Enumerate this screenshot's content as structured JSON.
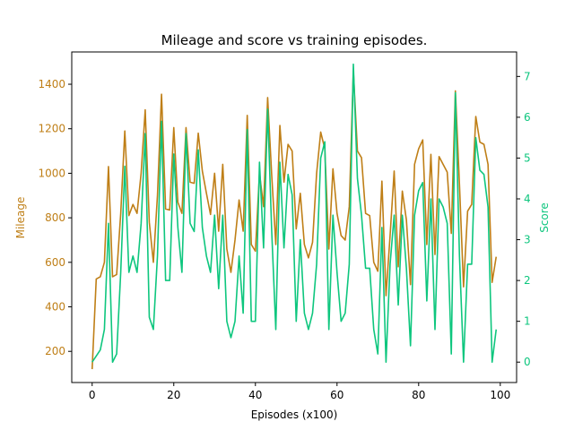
{
  "chart_data": {
    "type": "line",
    "title": "Mileage and score vs training episodes.",
    "xlabel": "Episodes (x100)",
    "ylabel_left": "Mileage",
    "ylabel_right": "Score",
    "xlim": [
      -5,
      104
    ],
    "ylim_left": [
      60,
      1545
    ],
    "ylim_right": [
      -0.5,
      7.6
    ],
    "x_ticks": [
      0,
      20,
      40,
      60,
      80,
      100
    ],
    "y_left_ticks": [
      200,
      400,
      600,
      800,
      1000,
      1200,
      1400
    ],
    "y_right_ticks": [
      0,
      1,
      2,
      3,
      4,
      5,
      6,
      7
    ],
    "colors": {
      "mileage": "#bf7f17",
      "score": "#0ec67e"
    },
    "series": [
      {
        "axis": "left",
        "values": [
          120,
          525,
          535,
          600,
          1030,
          535,
          545,
          820,
          1190,
          810,
          860,
          820,
          1000,
          1285,
          780,
          600,
          900,
          1355,
          840,
          835,
          1205,
          870,
          820,
          1205,
          960,
          955,
          1180,
          1010,
          910,
          815,
          1000,
          740,
          1040,
          660,
          555,
          700,
          880,
          740,
          1260,
          680,
          650,
          1000,
          850,
          1340,
          990,
          680,
          1215,
          960,
          1130,
          1100,
          750,
          910,
          680,
          620,
          690,
          1000,
          1185,
          1110,
          660,
          1020,
          820,
          720,
          700,
          850,
          1460,
          1100,
          1070,
          820,
          810,
          600,
          560,
          965,
          450,
          720,
          1010,
          580,
          920,
          790,
          500,
          1040,
          1110,
          1150,
          680,
          1085,
          635,
          1075,
          1040,
          1005,
          730,
          1370,
          950,
          490,
          830,
          860,
          1255,
          1140,
          1130,
          1040,
          510,
          625
        ]
      },
      {
        "axis": "right",
        "values": [
          0.0,
          0.15,
          0.3,
          0.8,
          3.4,
          0.0,
          0.2,
          2.2,
          4.8,
          2.2,
          2.6,
          2.2,
          3.4,
          5.6,
          1.1,
          0.8,
          2.6,
          5.9,
          2.0,
          2.0,
          5.1,
          3.3,
          2.2,
          5.6,
          3.4,
          3.2,
          5.2,
          3.3,
          2.6,
          2.2,
          3.6,
          1.8,
          3.6,
          1.0,
          0.6,
          1.0,
          2.6,
          1.2,
          5.7,
          1.0,
          1.0,
          4.9,
          2.8,
          6.2,
          3.2,
          0.8,
          4.9,
          2.8,
          4.6,
          4.1,
          1.0,
          3.0,
          1.2,
          0.8,
          1.2,
          2.4,
          5.0,
          5.4,
          0.8,
          3.6,
          2.2,
          1.0,
          1.2,
          2.4,
          7.3,
          4.5,
          3.6,
          2.3,
          2.3,
          0.8,
          0.2,
          3.3,
          0.0,
          2.4,
          3.6,
          1.4,
          3.6,
          2.3,
          0.4,
          3.6,
          4.2,
          4.4,
          1.5,
          4.0,
          0.8,
          4.0,
          3.8,
          3.4,
          0.2,
          6.6,
          2.6,
          0.0,
          2.4,
          2.4,
          5.5,
          4.7,
          4.6,
          3.8,
          0.0,
          0.8
        ]
      }
    ]
  }
}
